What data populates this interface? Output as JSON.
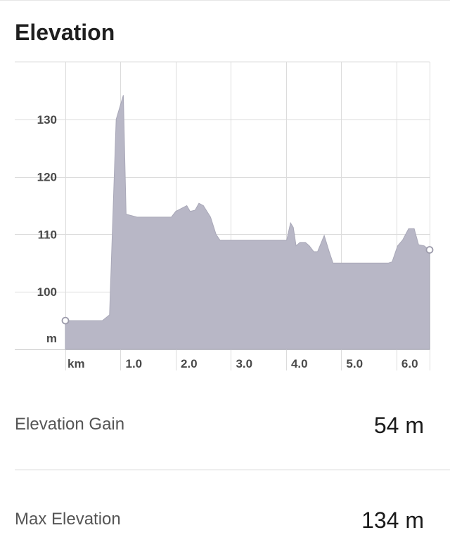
{
  "header": {
    "title": "Elevation"
  },
  "chart_data": {
    "type": "area",
    "title": "Elevation",
    "x_unit_label": "km",
    "y_unit_label": "m",
    "xlim": [
      0,
      6.6
    ],
    "ylim": [
      90,
      140
    ],
    "x_ticks": [
      1.0,
      2.0,
      3.0,
      4.0,
      5.0,
      6.0
    ],
    "x_tick_labels": [
      "1.0",
      "2.0",
      "3.0",
      "4.0",
      "5.0",
      "6.0"
    ],
    "y_ticks": [
      100,
      110,
      120,
      130
    ],
    "y_tick_labels": [
      "100",
      "110",
      "120",
      "130"
    ],
    "grid": true,
    "fill_color": "#b8b7c6",
    "line_color": "#a9a8b8",
    "series": [
      {
        "x": [
          0.0,
          0.09,
          0.6,
          0.67,
          0.8,
          0.92,
          1.05,
          1.1,
          1.3,
          1.6,
          1.92,
          2.0,
          2.2,
          2.26,
          2.35,
          2.42,
          2.5,
          2.63,
          2.73,
          2.8,
          3.2,
          3.6,
          3.95,
          4.01,
          4.08,
          4.13,
          4.18,
          4.25,
          4.35,
          4.42,
          4.5,
          4.57,
          4.69,
          4.78,
          4.85,
          5.2,
          5.5,
          5.75,
          5.85,
          5.92,
          6.02,
          6.11,
          6.22,
          6.32,
          6.4,
          6.5,
          6.6
        ],
        "y": [
          95,
          95,
          95,
          95,
          96,
          130,
          134.2,
          113.5,
          113,
          113,
          113,
          114,
          115,
          114,
          114.2,
          115.4,
          115,
          113,
          110,
          109,
          109,
          109,
          109,
          109,
          112,
          111.2,
          108,
          108.6,
          108.6,
          108,
          107,
          107,
          109.8,
          107,
          105,
          105,
          105,
          105,
          105,
          105.2,
          108,
          109,
          111,
          111,
          108.2,
          108,
          107.3
        ]
      }
    ],
    "endpoints": [
      {
        "x": 0.0,
        "y": 95
      },
      {
        "x": 6.6,
        "y": 107.3
      }
    ]
  },
  "stats": [
    {
      "label": "Elevation Gain",
      "value": "54 m"
    },
    {
      "label": "Max Elevation",
      "value": "134 m"
    }
  ]
}
